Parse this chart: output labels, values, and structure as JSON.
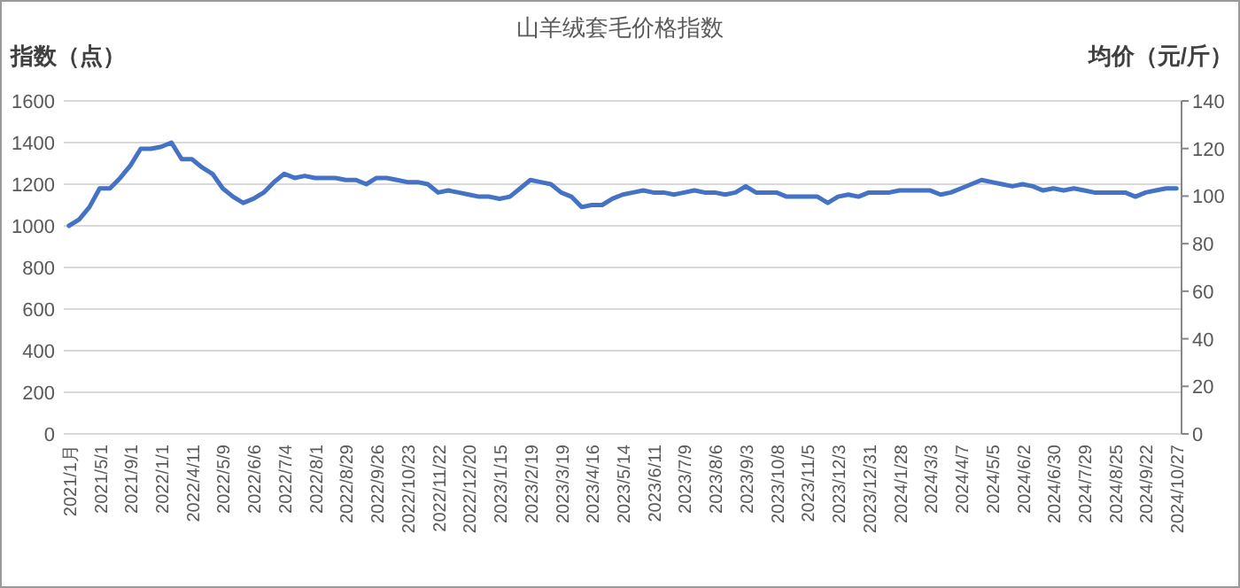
{
  "chart_data": {
    "type": "line",
    "title": "山羊绒套毛价格指数",
    "ylabel": "指数（点）",
    "y2label": "均价（元/斤）",
    "categories": [
      "2021/1月",
      null,
      null,
      "2021/5/1",
      null,
      null,
      "2021/9/1",
      null,
      null,
      "2022/1/1",
      null,
      null,
      "2022/4/11",
      null,
      null,
      "2022/5/9",
      null,
      null,
      "2022/6/6",
      null,
      null,
      "2022/7/4",
      null,
      null,
      "2022/8/1",
      null,
      null,
      "2022/8/29",
      null,
      null,
      "2022/9/26",
      null,
      null,
      "2022/10/23",
      null,
      null,
      "2022/11/22",
      null,
      null,
      "2022/12/20",
      null,
      null,
      "2023/1/15",
      null,
      null,
      "2023/2/19",
      null,
      null,
      "2023/3/19",
      null,
      null,
      "2023/4/16",
      null,
      null,
      "2023/5/14",
      null,
      null,
      "2023/6/11",
      null,
      null,
      "2023/7/9",
      null,
      null,
      "2023/8/6",
      null,
      null,
      "2023/9/3",
      null,
      null,
      "2023/10/8",
      null,
      null,
      "2023/11/5",
      null,
      null,
      "2023/12/3",
      null,
      null,
      "2023/12/31",
      null,
      null,
      "2024/1/28",
      null,
      null,
      "2024/3/3",
      null,
      null,
      "2024/4/7",
      null,
      null,
      "2024/5/5",
      null,
      null,
      "2024/6/2",
      null,
      null,
      "2024/6/30",
      null,
      null,
      "2024/7/29",
      null,
      null,
      "2024/8/25",
      null,
      null,
      "2024/9/22",
      null,
      null,
      "2024/10/27"
    ],
    "series": [
      {
        "color": "#4472c4",
        "values": [
          1000,
          1030,
          1090,
          1180,
          1180,
          1230,
          1290,
          1370,
          1370,
          1380,
          1400,
          1320,
          1320,
          1280,
          1250,
          1180,
          1140,
          1110,
          1130,
          1160,
          1210,
          1250,
          1230,
          1240,
          1230,
          1230,
          1230,
          1220,
          1220,
          1200,
          1230,
          1230,
          1220,
          1210,
          1210,
          1200,
          1160,
          1170,
          1160,
          1150,
          1140,
          1140,
          1130,
          1140,
          1180,
          1220,
          1210,
          1200,
          1160,
          1140,
          1090,
          1100,
          1100,
          1130,
          1150,
          1160,
          1170,
          1160,
          1160,
          1150,
          1160,
          1170,
          1160,
          1160,
          1150,
          1160,
          1190,
          1160,
          1160,
          1160,
          1140,
          1140,
          1140,
          1140,
          1110,
          1140,
          1150,
          1140,
          1160,
          1160,
          1160,
          1170,
          1170,
          1170,
          1170,
          1150,
          1160,
          1180,
          1200,
          1220,
          1210,
          1200,
          1190,
          1200,
          1190,
          1170,
          1180,
          1170,
          1180,
          1170,
          1160,
          1160,
          1160,
          1160,
          1140,
          1160,
          1170,
          1180,
          1180
        ]
      }
    ],
    "ylim": [
      0,
      1600
    ],
    "yticks": [
      0,
      200,
      400,
      600,
      800,
      1000,
      1200,
      1400,
      1600
    ],
    "y2lim": [
      0,
      140
    ],
    "y2ticks": [
      0,
      20,
      40,
      60,
      80,
      100,
      120,
      140
    ],
    "grid": "y"
  }
}
